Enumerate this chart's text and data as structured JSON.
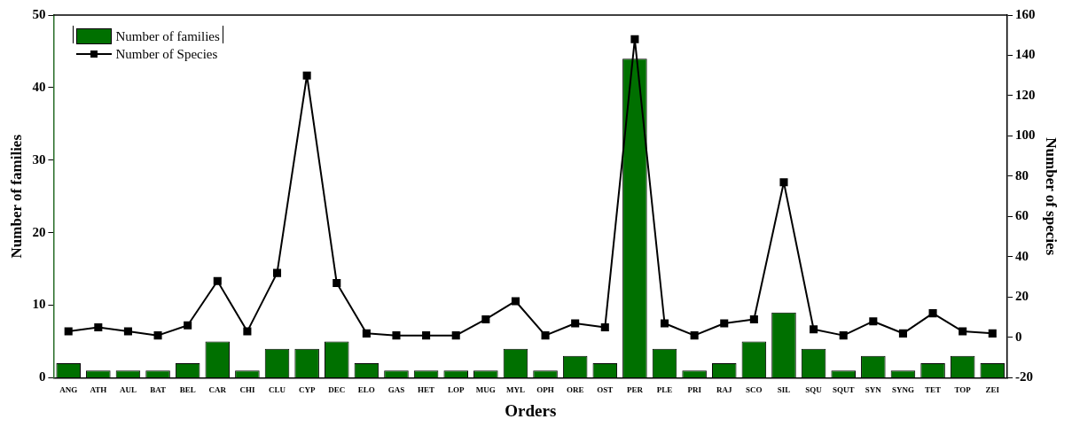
{
  "chart_data": {
    "type": "bar",
    "xlabel": "Orders",
    "ylabel": "Number of families",
    "y2label": "Number of species",
    "categories": [
      "ANG",
      "ATH",
      "AUL",
      "BAT",
      "BEL",
      "CAR",
      "CHI",
      "CLU",
      "CYP",
      "DEC",
      "ELO",
      "GAS",
      "HET",
      "LOP",
      "MUG",
      "MYL",
      "OPH",
      "ORE",
      "OST",
      "PER",
      "PLE",
      "PRI",
      "RAJ",
      "SCO",
      "SIL",
      "SQU",
      "SQUT",
      "SYN",
      "SYNG",
      "TET",
      "TOP",
      "ZEI"
    ],
    "series": [
      {
        "name": "Number of families",
        "color": "#007000",
        "values": [
          2,
          1,
          1,
          1,
          2,
          5,
          1,
          4,
          4,
          5,
          2,
          1,
          1,
          1,
          1,
          4,
          1,
          3,
          2,
          44,
          4,
          1,
          2,
          5,
          9,
          4,
          1,
          3,
          1,
          2,
          3,
          2
        ]
      },
      {
        "name": "Number of Species",
        "type": "line",
        "axis": "y2",
        "color": "#000000",
        "values": [
          3,
          5,
          3,
          1,
          6,
          28,
          3,
          32,
          130,
          27,
          2,
          1,
          1,
          1,
          9,
          18,
          1,
          7,
          5,
          148,
          7,
          1,
          7,
          9,
          77,
          4,
          1,
          8,
          2,
          12,
          3,
          2
        ]
      }
    ],
    "ylim": [
      0,
      50
    ],
    "yticks": [
      0,
      10,
      20,
      30,
      40,
      50
    ],
    "y2lim": [
      -20,
      160
    ],
    "y2ticks": [
      -20,
      0,
      20,
      40,
      60,
      80,
      100,
      120,
      140,
      160
    ],
    "legend": "top left",
    "marker": "square",
    "line_style": "solid",
    "grid": false
  }
}
